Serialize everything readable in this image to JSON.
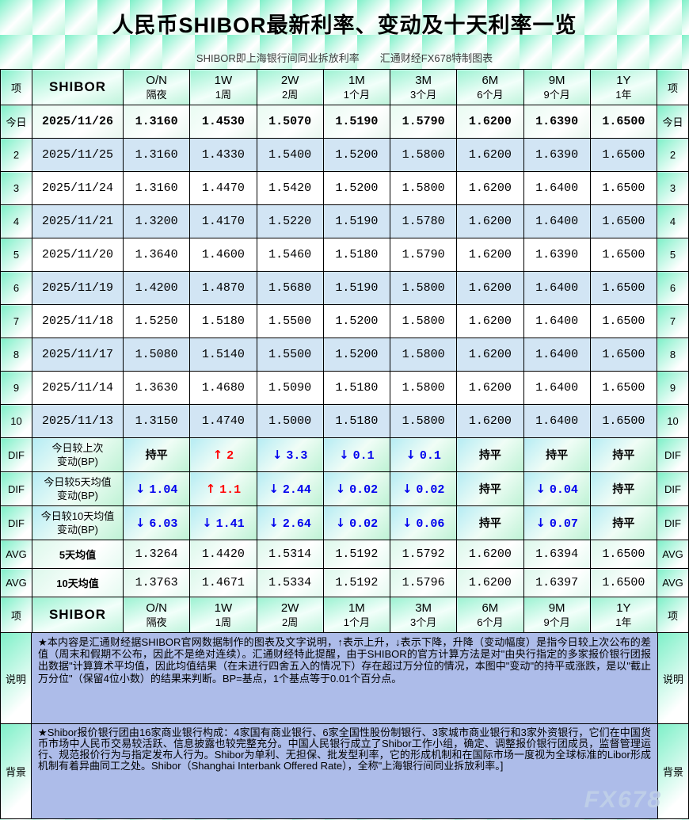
{
  "title": "人民币SHIBOR最新利率、变动及十天利率一览",
  "subtitle": "SHIBOR即上海银行间同业拆放利率　　汇通财经FX678特制图表",
  "watermark": "FX678",
  "glyphs": {
    "up_arrow": "↑",
    "down_arrow": "↓"
  },
  "colors": {
    "up": "#ff0000",
    "down": "#0000ee",
    "flat_text": "#000000",
    "tile_green": "#7ef0c8",
    "alt_row_blue": "#d2e5f4",
    "diff_row_cyan": "#b5ecf4",
    "diff_row_green": "#bdf2d4",
    "note_bg": "#adbce9"
  },
  "chart_data": {
    "type": "table",
    "corner_label": "项",
    "row_header_label": "SHIBOR",
    "tenors": [
      {
        "code": "O/N",
        "name": "隔夜"
      },
      {
        "code": "1W",
        "name": "1周"
      },
      {
        "code": "2W",
        "name": "2周"
      },
      {
        "code": "1M",
        "name": "1个月"
      },
      {
        "code": "3M",
        "name": "3个月"
      },
      {
        "code": "6M",
        "name": "6个月"
      },
      {
        "code": "9M",
        "name": "9个月"
      },
      {
        "code": "1Y",
        "name": "1年"
      }
    ],
    "daily_rows": [
      {
        "side": "今日",
        "date": "2025/11/26",
        "highlight": true,
        "values": [
          "1.3160",
          "1.4530",
          "1.5070",
          "1.5190",
          "1.5790",
          "1.6200",
          "1.6390",
          "1.6500"
        ]
      },
      {
        "side": "2",
        "date": "2025/11/25",
        "highlight": false,
        "values": [
          "1.3160",
          "1.4330",
          "1.5400",
          "1.5200",
          "1.5800",
          "1.6200",
          "1.6390",
          "1.6500"
        ]
      },
      {
        "side": "3",
        "date": "2025/11/24",
        "highlight": false,
        "values": [
          "1.3160",
          "1.4470",
          "1.5420",
          "1.5200",
          "1.5800",
          "1.6200",
          "1.6400",
          "1.6500"
        ]
      },
      {
        "side": "4",
        "date": "2025/11/21",
        "highlight": false,
        "values": [
          "1.3200",
          "1.4170",
          "1.5220",
          "1.5190",
          "1.5780",
          "1.6200",
          "1.6400",
          "1.6500"
        ]
      },
      {
        "side": "5",
        "date": "2025/11/20",
        "highlight": false,
        "values": [
          "1.3640",
          "1.4600",
          "1.5460",
          "1.5180",
          "1.5790",
          "1.6200",
          "1.6390",
          "1.6500"
        ]
      },
      {
        "side": "6",
        "date": "2025/11/19",
        "highlight": false,
        "values": [
          "1.4200",
          "1.4870",
          "1.5680",
          "1.5190",
          "1.5800",
          "1.6200",
          "1.6400",
          "1.6500"
        ]
      },
      {
        "side": "7",
        "date": "2025/11/18",
        "highlight": false,
        "values": [
          "1.5250",
          "1.5180",
          "1.5500",
          "1.5200",
          "1.5800",
          "1.6200",
          "1.6400",
          "1.6500"
        ]
      },
      {
        "side": "8",
        "date": "2025/11/17",
        "highlight": false,
        "values": [
          "1.5080",
          "1.5140",
          "1.5500",
          "1.5200",
          "1.5800",
          "1.6200",
          "1.6400",
          "1.6500"
        ]
      },
      {
        "side": "9",
        "date": "2025/11/14",
        "highlight": false,
        "values": [
          "1.3630",
          "1.4680",
          "1.5090",
          "1.5180",
          "1.5800",
          "1.6200",
          "1.6400",
          "1.6500"
        ]
      },
      {
        "side": "10",
        "date": "2025/11/13",
        "highlight": false,
        "values": [
          "1.3150",
          "1.4740",
          "1.5000",
          "1.5180",
          "1.5800",
          "1.6200",
          "1.6400",
          "1.6500"
        ]
      }
    ],
    "diff_rows": [
      {
        "side": "DIF",
        "label_line1": "今日较上次",
        "label_line2": "变动(BP)",
        "cells": [
          {
            "dir": "flat",
            "text": "持平"
          },
          {
            "dir": "up",
            "text": "2"
          },
          {
            "dir": "down",
            "text": "3.3"
          },
          {
            "dir": "down",
            "text": "0.1"
          },
          {
            "dir": "down",
            "text": "0.1"
          },
          {
            "dir": "flat",
            "text": "持平"
          },
          {
            "dir": "flat",
            "text": "持平"
          },
          {
            "dir": "flat",
            "text": "持平"
          }
        ]
      },
      {
        "side": "DIF",
        "label_line1": "今日较5天均值",
        "label_line2": "变动(BP)",
        "cells": [
          {
            "dir": "down",
            "text": "1.04"
          },
          {
            "dir": "up",
            "text": "1.1"
          },
          {
            "dir": "down",
            "text": "2.44"
          },
          {
            "dir": "down",
            "text": "0.02"
          },
          {
            "dir": "down",
            "text": "0.02"
          },
          {
            "dir": "flat",
            "text": "持平"
          },
          {
            "dir": "down",
            "text": "0.04"
          },
          {
            "dir": "flat",
            "text": "持平"
          }
        ]
      },
      {
        "side": "DIF",
        "label_line1": "今日较10天均值",
        "label_line2": "变动(BP)",
        "cells": [
          {
            "dir": "down",
            "text": "6.03"
          },
          {
            "dir": "down",
            "text": "1.41"
          },
          {
            "dir": "down",
            "text": "2.64"
          },
          {
            "dir": "down",
            "text": "0.02"
          },
          {
            "dir": "down",
            "text": "0.06"
          },
          {
            "dir": "flat",
            "text": "持平"
          },
          {
            "dir": "down",
            "text": "0.07"
          },
          {
            "dir": "flat",
            "text": "持平"
          }
        ]
      }
    ],
    "avg_rows": [
      {
        "side": "AVG",
        "label": "5天均值",
        "values": [
          "1.3264",
          "1.4420",
          "1.5314",
          "1.5192",
          "1.5792",
          "1.6200",
          "1.6394",
          "1.6500"
        ]
      },
      {
        "side": "AVG",
        "label": "10天均值",
        "values": [
          "1.3763",
          "1.4671",
          "1.5334",
          "1.5192",
          "1.5796",
          "1.6200",
          "1.6397",
          "1.6500"
        ]
      }
    ]
  },
  "notes": [
    {
      "side": "说明",
      "text": "★本内容是汇通财经据SHIBOR官网数据制作的图表及文字说明，↑表示上升，↓表示下降，升降（变动幅度）是指今日较上次公布的差值（周末和假期不公布，因此不是绝对连续）。汇通财经特此提醒，由于SHIBOR的官方计算方法是对\"由央行指定的多家报价银行团报出数据\"计算算术平均值，因此均值结果（在未进行四舍五入的情况下）存在超过万分位的情况，本图中\"变动\"的持平或涨跌，是以\"截止万分位\"（保留4位小数）的结果来判断。BP=基点，1个基点等于0.01个百分点。"
    },
    {
      "side": "背景",
      "text": "★Shibor报价银行团由16家商业银行构成：4家国有商业银行、6家全国性股份制银行、3家城市商业银行和3家外资银行，它们在中国货币市场中人民币交易较活跃、信息披露也较完整充分。中国人民银行成立了Shibor工作小组，确定、调整报价银行团成员，监督管理运行、规范报价行为与指定发布人行为。Shibor为单利、无担保、批发型利率，它的形成机制和在国际市场一度视为全球标准的Libor形成机制有着异曲同工之处。Shibor（Shanghai Interbank Offered Rate），全称\"上海银行间同业拆放利率。]"
    }
  ]
}
